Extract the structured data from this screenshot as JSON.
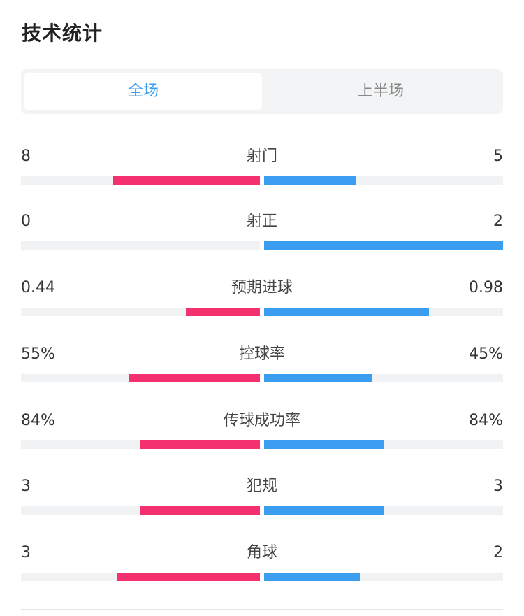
{
  "title": "技术统计",
  "tabs": [
    {
      "label": "全场",
      "active": true
    },
    {
      "label": "上半场",
      "active": false
    }
  ],
  "colors": {
    "home": "#f5306e",
    "away": "#3a9df0",
    "active_tab": "#3a9df0"
  },
  "stats": [
    {
      "label": "射门",
      "home": "8",
      "away": "5",
      "home_fill": 0.615,
      "away_fill": 0.385
    },
    {
      "label": "射正",
      "home": "0",
      "away": "2",
      "home_fill": 0.0,
      "away_fill": 1.0
    },
    {
      "label": "预期进球",
      "home": "0.44",
      "away": "0.98",
      "home_fill": 0.31,
      "away_fill": 0.69
    },
    {
      "label": "控球率",
      "home": "55%",
      "away": "45%",
      "home_fill": 0.55,
      "away_fill": 0.45
    },
    {
      "label": "传球成功率",
      "home": "84%",
      "away": "84%",
      "home_fill": 0.5,
      "away_fill": 0.5
    },
    {
      "label": "犯规",
      "home": "3",
      "away": "3",
      "home_fill": 0.5,
      "away_fill": 0.5
    },
    {
      "label": "角球",
      "home": "3",
      "away": "2",
      "home_fill": 0.6,
      "away_fill": 0.4
    }
  ]
}
